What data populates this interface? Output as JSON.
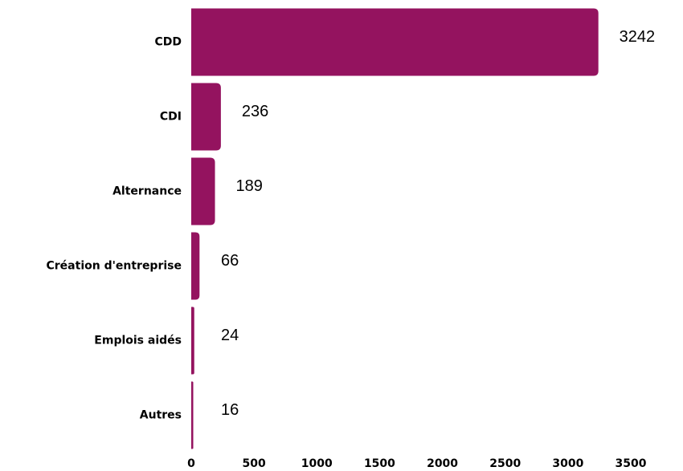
{
  "chart_data": {
    "type": "barh",
    "categories": [
      "CDD",
      "CDI",
      "Alternance",
      "Création d'entreprise",
      "Emplois aidés",
      "Autres"
    ],
    "values": [
      3242,
      236,
      189,
      66,
      24,
      16
    ],
    "color": "#94135f",
    "xlim": [
      0,
      3500
    ],
    "xticks": [
      0,
      500,
      1000,
      1500,
      2000,
      2500,
      3000,
      3500
    ],
    "grid": false
  }
}
